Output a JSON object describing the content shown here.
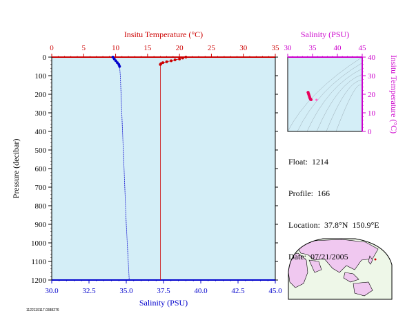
{
  "colors": {
    "temperature": "#cc0000",
    "salinity": "#0000cc",
    "ts_axis": "#cc00cc",
    "plot_bg": "#d4eef7",
    "map_land": "#f0c8f0",
    "map_ocean": "#eef7e8"
  },
  "info": {
    "float_label": "Float:",
    "float_value": "1214",
    "profile_label": "Profile:",
    "profile_value": "166",
    "location_label": "Location:",
    "location_value": "37.8°N  150.9°E",
    "date_label": "Date:",
    "date_value": "07/21/2005"
  },
  "footer_id": "1122119117.0388276",
  "map_icons": [
    "world-map-icon",
    "float-location-marker-icon"
  ],
  "chart_data": [
    {
      "type": "line",
      "role": "profile",
      "top_axis": {
        "label": "Insitu Temperature (°C)",
        "range": [
          0,
          35
        ],
        "ticks": [
          "0",
          "5",
          "10",
          "15",
          "20",
          "25",
          "30",
          "35"
        ]
      },
      "bottom_axis": {
        "label": "Salinity (PSU)",
        "range": [
          30,
          45
        ],
        "ticks": [
          "30.0",
          "32.5",
          "35.0",
          "37.5",
          "40.0",
          "42.5",
          "45.0"
        ]
      },
      "left_axis": {
        "label": "Pressure (decibar)",
        "range": [
          0,
          1200
        ],
        "reversed": true,
        "ticks": [
          "0",
          "100",
          "200",
          "300",
          "400",
          "500",
          "600",
          "700",
          "800",
          "900",
          "1000",
          "1100",
          "1200"
        ]
      },
      "series": [
        {
          "role": "temperature",
          "x": [
            21.0,
            20.5,
            20.0,
            19.3,
            18.7,
            18.0,
            17.4,
            17.1,
            17.0,
            17.0,
            17.0,
            17.0,
            17.0
          ],
          "y": [
            0,
            5,
            10,
            15,
            20,
            25,
            30,
            35,
            40,
            150,
            500,
            900,
            1200
          ]
        },
        {
          "role": "salinity",
          "x": [
            34.1,
            34.2,
            34.3,
            34.4,
            34.5,
            34.55,
            34.6,
            34.7,
            34.85,
            35.0,
            35.2
          ],
          "y": [
            0,
            10,
            20,
            30,
            40,
            50,
            100,
            300,
            600,
            900,
            1200
          ]
        }
      ]
    },
    {
      "type": "scatter",
      "role": "ts-diagram",
      "top_axis": {
        "label": "Salinity (PSU)",
        "range": [
          30,
          45
        ],
        "ticks": [
          "30",
          "35",
          "40",
          "45"
        ]
      },
      "right_axis": {
        "label": "Insitu Temperature (°C)",
        "range": [
          0,
          40
        ],
        "ticks": [
          "0",
          "10",
          "20",
          "30",
          "40"
        ]
      },
      "points": [
        {
          "x": 34.1,
          "y": 21.0
        },
        {
          "x": 34.2,
          "y": 20.2
        },
        {
          "x": 34.3,
          "y": 19.4
        },
        {
          "x": 34.4,
          "y": 18.6
        },
        {
          "x": 34.5,
          "y": 17.8
        },
        {
          "x": 34.6,
          "y": 17.3
        },
        {
          "x": 34.7,
          "y": 17.1
        },
        {
          "x": 35.8,
          "y": 17.0
        }
      ]
    }
  ]
}
